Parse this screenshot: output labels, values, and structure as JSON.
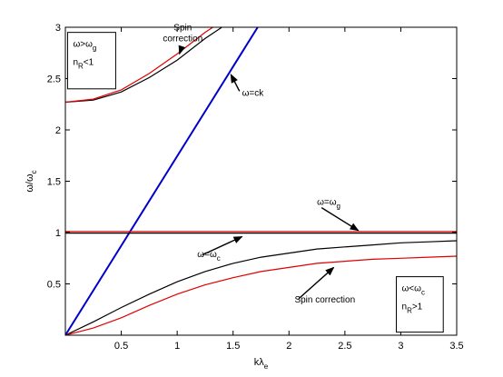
{
  "chart_data": {
    "type": "line",
    "xlabel": {
      "main": "kλ",
      "sub": "e"
    },
    "ylabel": {
      "main": "ω/ω",
      "sub": "c"
    },
    "xlim": [
      0,
      3.5
    ],
    "ylim": [
      0,
      3
    ],
    "x_ticks": [
      "0.5",
      "1",
      "1.5",
      "2",
      "2.5",
      "3",
      "3.5"
    ],
    "y_ticks": [
      "0.5",
      "1",
      "1.5",
      "2",
      "2.5",
      "3"
    ],
    "grid": false,
    "colors": {
      "classical": "#000000",
      "spin": "#e00000",
      "light": "#0000cc"
    },
    "series": [
      {
        "x": [
          0,
          0.25,
          0.5,
          0.75,
          1,
          1.25,
          1.5,
          1.75,
          2,
          2.25,
          2.5,
          2.75,
          3,
          3.25,
          3.5
        ],
        "y": [
          0,
          0.13,
          0.27,
          0.4,
          0.52,
          0.62,
          0.7,
          0.76,
          0.8,
          0.84,
          0.86,
          0.88,
          0.9,
          0.91,
          0.92
        ],
        "color": "classical"
      },
      {
        "x": [
          0,
          0.25,
          0.5,
          0.75,
          1,
          1.25,
          1.5,
          1.75,
          2,
          2.25,
          2.5,
          2.75,
          3,
          3.25,
          3.5
        ],
        "y": [
          0,
          0.07,
          0.17,
          0.29,
          0.4,
          0.49,
          0.56,
          0.62,
          0.66,
          0.7,
          0.72,
          0.74,
          0.75,
          0.76,
          0.77
        ],
        "color": "spin"
      },
      {
        "x": [
          0,
          0.25,
          0.5,
          0.75,
          1,
          1.25,
          1.4
        ],
        "y": [
          2.27,
          2.29,
          2.37,
          2.51,
          2.68,
          2.89,
          3.0
        ],
        "color": "classical"
      },
      {
        "x": [
          0,
          0.25,
          0.5,
          0.75,
          1,
          1.25,
          1.32
        ],
        "y": [
          2.27,
          2.3,
          2.39,
          2.55,
          2.74,
          2.95,
          3.0
        ],
        "color": "spin"
      },
      {
        "x": [
          0,
          1.72
        ],
        "y": [
          0,
          3.0
        ],
        "color": "light"
      },
      {
        "x": [
          0,
          3.5
        ],
        "y": [
          0.995,
          0.995
        ],
        "color": "classical"
      },
      {
        "x": [
          0,
          3.5
        ],
        "y": [
          1.01,
          1.01
        ],
        "color": "spin"
      }
    ],
    "annotations": [
      {
        "lines": [
          "Spin",
          "correction"
        ],
        "x": 1.05,
        "y": 2.97,
        "anchor": "middle",
        "arrow_to": [
          1.02,
          2.74
        ]
      },
      {
        "main": "ω=ck",
        "x": 1.58,
        "y": 2.33,
        "arrow_to": [
          1.48,
          2.54
        ]
      },
      {
        "main": "ω=ω",
        "sub": "g",
        "x": 2.25,
        "y": 1.27,
        "arrow_to": [
          2.62,
          1.02
        ]
      },
      {
        "main": "ω=ω",
        "sub": "c",
        "x": 1.18,
        "y": 0.76,
        "arrow_to": [
          1.58,
          0.96
        ]
      },
      {
        "main": "Spin correction",
        "x": 2.05,
        "y": 0.32,
        "arrow_to": [
          2.4,
          0.66
        ]
      }
    ],
    "boxes": [
      {
        "lines": [
          {
            "main": "ω>ω",
            "sub": "g"
          },
          {
            "main": "n",
            "sub": "R",
            "tail": "<1"
          }
        ],
        "x0": 0.02,
        "y0": 2.95,
        "x1": 0.45,
        "y1": 2.4
      },
      {
        "lines": [
          {
            "main": "ω<ω",
            "sub": "c"
          },
          {
            "main": "n",
            "sub": "R",
            "tail": ">1"
          }
        ],
        "x0": 2.96,
        "y0": 0.57,
        "x1": 3.38,
        "y1": 0.03
      }
    ]
  }
}
